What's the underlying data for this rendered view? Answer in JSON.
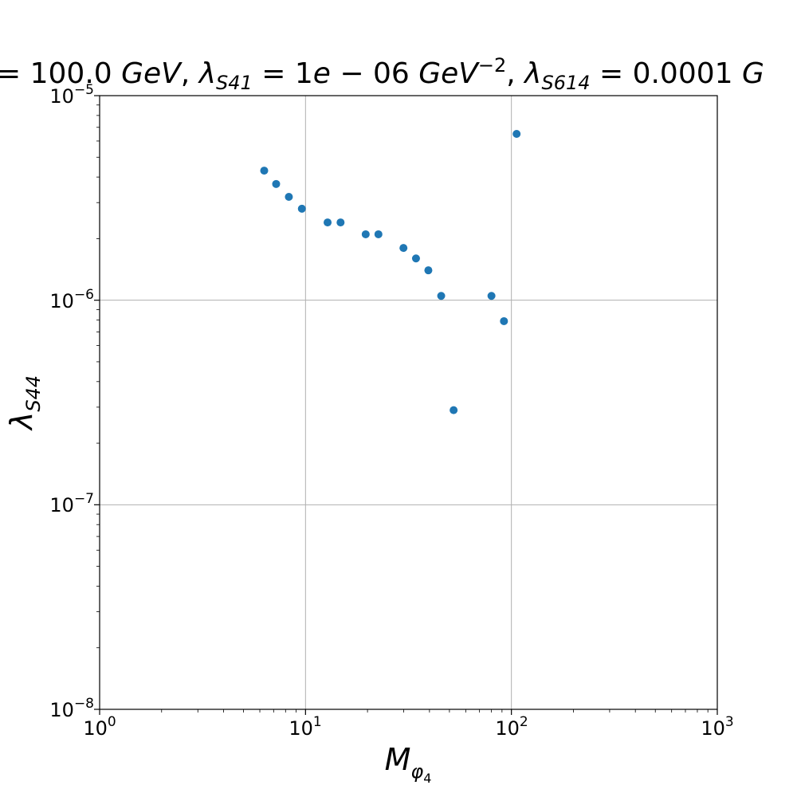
{
  "chart_data": {
    "type": "scatter",
    "title": "= 100.0 GeV, λ_S41 = 1e − 06 GeV^−2, λ_S614 = 0.0001 G",
    "title_parts": {
      "prefix": "= 100.0 ",
      "unit1": "GeV",
      "comma1": ", ",
      "lambda1": "λ",
      "sub1": "S41",
      "eq1": " = 1",
      "e1": "e",
      "val1": " − 06 ",
      "unit2": "GeV",
      "sup2": "−2",
      "comma2": ", ",
      "lambda2": "λ",
      "sub2": "S614",
      "eq2": " = 0.0001 ",
      "tail": "G"
    },
    "xlabel": "M_φ4",
    "xlabel_parts": {
      "main": "M",
      "sub": "φ",
      "subsub": "4"
    },
    "ylabel": "λ_S44",
    "ylabel_parts": {
      "main": "λ",
      "sub": "S44"
    },
    "x_scale": "log",
    "y_scale": "log",
    "xlim": [
      1,
      1000
    ],
    "ylim": [
      1e-08,
      1e-05
    ],
    "grid": true,
    "color": "#1f77b4",
    "x_ticks": [
      {
        "value": 1,
        "base": "10",
        "exp": "0"
      },
      {
        "value": 10,
        "base": "10",
        "exp": "1"
      },
      {
        "value": 100,
        "base": "10",
        "exp": "2"
      },
      {
        "value": 1000,
        "base": "10",
        "exp": "3"
      }
    ],
    "y_ticks": [
      {
        "value": 1e-08,
        "base": "10",
        "exp": "−8"
      },
      {
        "value": 1e-07,
        "base": "10",
        "exp": "−7"
      },
      {
        "value": 1e-06,
        "base": "10",
        "exp": "−6"
      },
      {
        "value": 1e-05,
        "base": "10",
        "exp": "−5"
      }
    ],
    "points": [
      {
        "x": 6.3,
        "y": 4.3e-06
      },
      {
        "x": 7.2,
        "y": 3.7e-06
      },
      {
        "x": 8.3,
        "y": 3.2e-06
      },
      {
        "x": 9.6,
        "y": 2.8e-06
      },
      {
        "x": 12.8,
        "y": 2.4e-06
      },
      {
        "x": 14.8,
        "y": 2.4e-06
      },
      {
        "x": 19.6,
        "y": 2.1e-06
      },
      {
        "x": 22.6,
        "y": 2.1e-06
      },
      {
        "x": 29.9,
        "y": 1.8e-06
      },
      {
        "x": 34.4,
        "y": 1.6e-06
      },
      {
        "x": 39.5,
        "y": 1.4e-06
      },
      {
        "x": 45.6,
        "y": 1.05e-06
      },
      {
        "x": 52.4,
        "y": 2.9e-07
      },
      {
        "x": 80.0,
        "y": 1.05e-06
      },
      {
        "x": 92.0,
        "y": 7.9e-07
      },
      {
        "x": 106.0,
        "y": 6.5e-06
      }
    ]
  }
}
